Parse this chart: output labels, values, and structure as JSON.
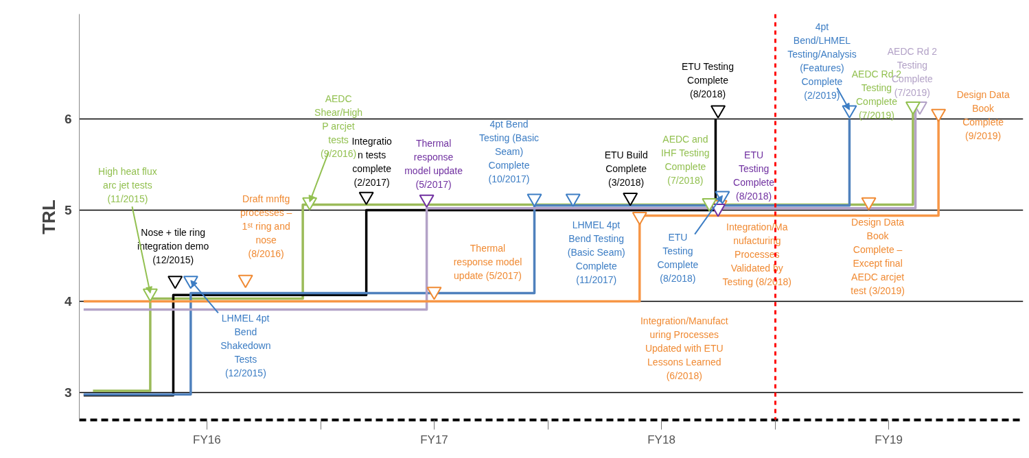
{
  "chart_data": {
    "type": "step",
    "ylabel": "TRL",
    "xlim": [
      "2015-09-09",
      "2019-11-03"
    ],
    "ylim": [
      2.7,
      7.15
    ],
    "xticks": [
      {
        "value": "2016-04-01",
        "label": "FY16"
      },
      {
        "value": "2016-10-01",
        "label": null
      },
      {
        "value": "2017-04-01",
        "label": "FY17"
      },
      {
        "value": "2017-10-01",
        "label": null
      },
      {
        "value": "2018-04-01",
        "label": "FY18"
      },
      {
        "value": "2018-10-01",
        "label": null
      },
      {
        "value": "2019-04-01",
        "label": "FY19"
      }
    ],
    "yticks": [
      3,
      4,
      5,
      6
    ],
    "grid": "y",
    "line_style": "solid",
    "ref_lines": [
      {
        "axis": "x",
        "value": "2018-10-01",
        "color": "#ff0000",
        "line_style": "dashed"
      }
    ],
    "series": [
      {
        "color": "#9bbb59",
        "x": [
          "2015-10-01",
          "2016-01-01",
          "2016-09-02",
          "2019-05-10"
        ],
        "values": [
          3.02,
          4.03,
          5.06,
          6.15
        ]
      },
      {
        "color": "#000000",
        "x": [
          "2015-09-16",
          "2016-02-07",
          "2016-12-13",
          "2018-06-27"
        ],
        "values": [
          2.97,
          4.07,
          5.0,
          6.0
        ]
      },
      {
        "color": "#4f81bd",
        "x": [
          "2015-09-16",
          "2016-03-06",
          "2017-09-09",
          "2019-01-28"
        ],
        "values": [
          2.98,
          4.09,
          5.05,
          6.0
        ]
      },
      {
        "color": "#b3a2c7",
        "x": [
          "2015-09-16",
          "2017-03-20",
          "2019-05-14"
        ],
        "values": [
          3.91,
          5.02,
          6.1
        ]
      },
      {
        "color": "#f79646",
        "x": [
          "2015-09-16",
          "2018-02-25",
          "2019-06-20"
        ],
        "values": [
          4.0,
          4.94,
          6.0
        ]
      },
      {
        "type": "scatter",
        "marker": "triangle",
        "color": "#92c050",
        "x": [
          "2016-01-01",
          "2016-09-13",
          "2018-06-17",
          "2019-05-10"
        ],
        "values": [
          4.09,
          5.09,
          5.08,
          6.14
        ]
      },
      {
        "type": "scatter",
        "marker": "triangle",
        "color": "#000000",
        "x": [
          "2016-02-10",
          "2016-12-13",
          "2018-02-10",
          "2018-07-01"
        ],
        "values": [
          4.23,
          5.15,
          5.14,
          6.1
        ]
      },
      {
        "type": "scatter",
        "marker": "triangle",
        "color": "#3c7dc4",
        "x": [
          "2016-03-06",
          "2017-09-09",
          "2017-11-10",
          "2018-07-08",
          "2019-01-28"
        ],
        "values": [
          4.23,
          5.13,
          5.13,
          5.16,
          6.1
        ]
      },
      {
        "type": "scatter",
        "marker": "triangle",
        "color": "#7030a0",
        "x": [
          "2017-03-20",
          "2018-07-01"
        ],
        "values": [
          5.12,
          5.02
        ]
      },
      {
        "type": "scatter",
        "marker": "triangle",
        "color": "#b3a2c7",
        "x": [
          "2019-05-21"
        ],
        "values": [
          6.14
        ]
      },
      {
        "type": "scatter",
        "marker": "triangle",
        "color": "#f08a33",
        "x": [
          "2016-06-02",
          "2017-04-01",
          "2018-02-25",
          "2018-07-04",
          "2019-02-28",
          "2019-06-20"
        ],
        "values": [
          4.24,
          4.11,
          4.93,
          5.06,
          5.09,
          6.06
        ]
      }
    ],
    "annotations": [
      {
        "text": "High heat flux\narc jet tests\n(11/2015)",
        "x": "2016-01-01",
        "y": 4.09
      },
      {
        "text": "AEDC\nShear/High\nP arcjet\ntests\n(9/2016)",
        "x": "2016-09-13",
        "y": 5.09
      },
      {
        "text": "AEDC and\nIHF Testing\nComplete\n(7/2018)",
        "x": "2018-06-17",
        "y": 5.08
      },
      {
        "text": "AEDC Rd 2\nTesting\nComplete\n(7/2019)",
        "x": "2019-05-10",
        "y": 6.14
      },
      {
        "text": "Nose + tile ring\nintegration demo\n(12/2015)",
        "x": "2016-02-10",
        "y": 4.23
      },
      {
        "text": "Integratio\nn tests\ncomplete\n(2/2017)",
        "x": "2016-12-13",
        "y": 5.15
      },
      {
        "text": "ETU Build\nComplete\n(3/2018)",
        "x": "2018-02-10",
        "y": 5.14
      },
      {
        "text": "ETU Testing\nComplete\n(8/2018)",
        "x": "2018-07-01",
        "y": 6.1
      },
      {
        "text": "LHMEL 4pt\nBend\nShakedown\nTests\n(12/2015)",
        "x": "2016-03-06",
        "y": 4.23
      },
      {
        "text": "4pt Bend\nTesting (Basic\nSeam)\nComplete\n(10/2017)",
        "x": "2017-09-09",
        "y": 5.13
      },
      {
        "text": "LHMEL 4pt\nBend Testing\n(Basic Seam)\nComplete\n(11/2017)",
        "x": "2017-11-10",
        "y": 5.13
      },
      {
        "text": "ETU\nTesting\nComplete\n(8/2018)",
        "x": "2018-07-08",
        "y": 5.16
      },
      {
        "text": "4pt\nBend/LHMEL\nTesting/Analysis\n(Features)\nComplete\n(2/2019)",
        "x": "2019-01-28",
        "y": 6.1
      },
      {
        "text": "Thermal\nresponse\nmodel update\n(5/2017)",
        "x": "2017-03-20",
        "y": 5.12
      },
      {
        "text": "ETU\nTesting\nComplete\n(8/2018)",
        "x": "2018-07-01",
        "y": 5.02
      },
      {
        "text": "AEDC Rd 2\nTesting\nComplete\n(7/2019)",
        "x": "2019-05-21",
        "y": 6.14
      },
      {
        "text": "Draft mnftg\nprocesses –\n1ˢᵗ ring and\nnose\n(8/2016)",
        "x": "2016-06-02",
        "y": 4.24
      },
      {
        "text": "Thermal\nresponse model\nupdate (5/2017)",
        "x": "2017-04-01",
        "y": 4.11
      },
      {
        "text": "Integration/Manufact\nuring Processes\nUpdated with ETU\nLessons Learned\n(6/2018)",
        "x": "2018-02-25",
        "y": 4.0
      },
      {
        "text": "Integration/Ma\nnufacturing\nProcesses\nValidated by\nTesting (8/2018)",
        "x": "2018-07-04",
        "y": 5.06
      },
      {
        "text": "Design Data\nBook\nComplete –\nExcept final\nAEDC arcjet\ntest (3/2019)",
        "x": "2019-02-28",
        "y": 5.09
      },
      {
        "text": "Design Data\nBook\nComplete\n(9/2019)",
        "x": "2019-06-20",
        "y": 6.06
      }
    ]
  }
}
